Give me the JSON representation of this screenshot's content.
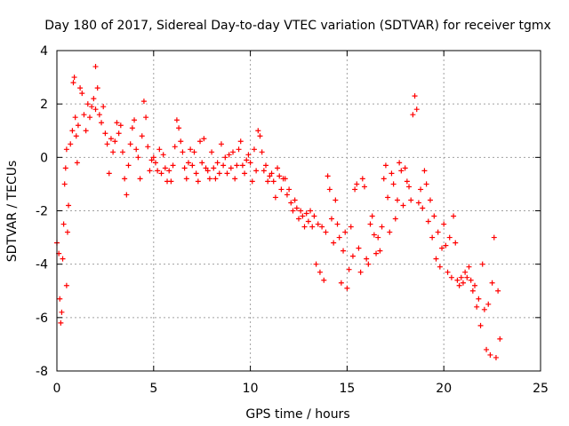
{
  "chart_data": {
    "type": "scatter",
    "title": "Day 180 of 2017, Sidereal Day-to-day VTEC variation (SDTVAR) for receiver tgmx",
    "xlabel": "GPS time / hours",
    "ylabel": "SDTVAR / TECUs",
    "xlim": [
      0,
      25
    ],
    "ylim": [
      -8,
      4
    ],
    "xticks": [
      0,
      5,
      10,
      15,
      20,
      25
    ],
    "yticks": [
      -8,
      -6,
      -4,
      -2,
      0,
      2,
      4
    ],
    "xtick_labels": [
      "0",
      "5",
      "10",
      "15",
      "20",
      "25"
    ],
    "ytick_labels": [
      "-8",
      "-6",
      "-4",
      "-2",
      "0",
      "2",
      "4"
    ],
    "grid": true,
    "marker": "+",
    "series": [
      {
        "name": "SDTVAR",
        "color": "#ff0000",
        "points": [
          [
            0.0,
            -3.2
          ],
          [
            0.1,
            -3.6
          ],
          [
            0.15,
            -5.3
          ],
          [
            0.2,
            -6.2
          ],
          [
            0.25,
            -5.8
          ],
          [
            0.3,
            -3.8
          ],
          [
            0.35,
            -2.5
          ],
          [
            0.4,
            -1.0
          ],
          [
            0.45,
            -0.4
          ],
          [
            0.5,
            0.3
          ],
          [
            0.5,
            -4.8
          ],
          [
            0.55,
            -2.8
          ],
          [
            0.6,
            -1.8
          ],
          [
            0.7,
            0.5
          ],
          [
            0.8,
            1.0
          ],
          [
            0.85,
            2.8
          ],
          [
            0.9,
            3.0
          ],
          [
            0.95,
            1.5
          ],
          [
            1.0,
            0.8
          ],
          [
            1.05,
            -0.2
          ],
          [
            1.1,
            1.2
          ],
          [
            1.2,
            2.6
          ],
          [
            1.3,
            2.4
          ],
          [
            1.4,
            1.6
          ],
          [
            1.5,
            1.0
          ],
          [
            1.6,
            2.0
          ],
          [
            1.7,
            1.5
          ],
          [
            1.8,
            1.9
          ],
          [
            1.9,
            2.2
          ],
          [
            2.0,
            1.8
          ],
          [
            2.0,
            3.4
          ],
          [
            2.1,
            2.6
          ],
          [
            2.2,
            1.6
          ],
          [
            2.3,
            1.3
          ],
          [
            2.4,
            1.9
          ],
          [
            2.5,
            0.9
          ],
          [
            2.6,
            0.5
          ],
          [
            2.7,
            -0.6
          ],
          [
            2.8,
            0.7
          ],
          [
            2.9,
            0.2
          ],
          [
            3.0,
            0.6
          ],
          [
            3.1,
            1.3
          ],
          [
            3.2,
            0.9
          ],
          [
            3.3,
            1.2
          ],
          [
            3.4,
            0.2
          ],
          [
            3.5,
            -0.8
          ],
          [
            3.6,
            -1.4
          ],
          [
            3.7,
            -0.3
          ],
          [
            3.8,
            0.5
          ],
          [
            3.9,
            1.1
          ],
          [
            4.0,
            1.4
          ],
          [
            4.1,
            0.3
          ],
          [
            4.2,
            0.0
          ],
          [
            4.3,
            -0.8
          ],
          [
            4.4,
            0.8
          ],
          [
            4.5,
            2.1
          ],
          [
            4.6,
            1.5
          ],
          [
            4.7,
            0.4
          ],
          [
            4.8,
            -0.5
          ],
          [
            4.9,
            -0.1
          ],
          [
            5.0,
            0.0
          ],
          [
            5.1,
            -0.2
          ],
          [
            5.2,
            -0.5
          ],
          [
            5.3,
            0.3
          ],
          [
            5.4,
            -0.6
          ],
          [
            5.5,
            0.1
          ],
          [
            5.6,
            -0.4
          ],
          [
            5.7,
            -0.9
          ],
          [
            5.8,
            -0.5
          ],
          [
            5.9,
            -0.9
          ],
          [
            6.0,
            -0.3
          ],
          [
            6.1,
            0.4
          ],
          [
            6.2,
            1.4
          ],
          [
            6.3,
            1.1
          ],
          [
            6.4,
            0.6
          ],
          [
            6.5,
            0.2
          ],
          [
            6.6,
            -0.4
          ],
          [
            6.7,
            -0.8
          ],
          [
            6.8,
            -0.2
          ],
          [
            6.9,
            0.3
          ],
          [
            7.0,
            -0.3
          ],
          [
            7.1,
            0.2
          ],
          [
            7.2,
            -0.6
          ],
          [
            7.3,
            -0.9
          ],
          [
            7.4,
            0.6
          ],
          [
            7.5,
            -0.2
          ],
          [
            7.6,
            0.7
          ],
          [
            7.7,
            -0.4
          ],
          [
            7.8,
            -0.5
          ],
          [
            7.9,
            -0.8
          ],
          [
            8.0,
            0.2
          ],
          [
            8.1,
            -0.4
          ],
          [
            8.2,
            -0.8
          ],
          [
            8.3,
            -0.2
          ],
          [
            8.4,
            -0.6
          ],
          [
            8.5,
            0.5
          ],
          [
            8.6,
            -0.3
          ],
          [
            8.7,
            0.0
          ],
          [
            8.8,
            -0.6
          ],
          [
            8.9,
            0.1
          ],
          [
            9.0,
            -0.4
          ],
          [
            9.1,
            0.2
          ],
          [
            9.2,
            -0.8
          ],
          [
            9.3,
            -0.3
          ],
          [
            9.4,
            0.3
          ],
          [
            9.5,
            0.6
          ],
          [
            9.6,
            -0.3
          ],
          [
            9.7,
            -0.6
          ],
          [
            9.8,
            -0.1
          ],
          [
            9.9,
            0.1
          ],
          [
            10.0,
            -0.2
          ],
          [
            10.1,
            -0.9
          ],
          [
            10.2,
            0.3
          ],
          [
            10.3,
            -0.5
          ],
          [
            10.4,
            1.0
          ],
          [
            10.5,
            0.8
          ],
          [
            10.6,
            0.2
          ],
          [
            10.7,
            -0.5
          ],
          [
            10.8,
            -0.3
          ],
          [
            10.9,
            -0.9
          ],
          [
            11.0,
            -0.7
          ],
          [
            11.1,
            -0.6
          ],
          [
            11.2,
            -0.9
          ],
          [
            11.3,
            -1.5
          ],
          [
            11.4,
            -0.4
          ],
          [
            11.5,
            -0.7
          ],
          [
            11.6,
            -1.2
          ],
          [
            11.7,
            -0.8
          ],
          [
            11.8,
            -0.8
          ],
          [
            11.9,
            -1.4
          ],
          [
            12.0,
            -1.2
          ],
          [
            12.1,
            -1.7
          ],
          [
            12.2,
            -2.0
          ],
          [
            12.3,
            -1.6
          ],
          [
            12.4,
            -1.9
          ],
          [
            12.5,
            -2.3
          ],
          [
            12.6,
            -2.0
          ],
          [
            12.7,
            -2.2
          ],
          [
            12.8,
            -2.6
          ],
          [
            12.9,
            -2.1
          ],
          [
            13.0,
            -2.4
          ],
          [
            13.1,
            -2.0
          ],
          [
            13.2,
            -2.6
          ],
          [
            13.3,
            -2.2
          ],
          [
            13.4,
            -4.0
          ],
          [
            13.5,
            -2.5
          ],
          [
            13.6,
            -4.3
          ],
          [
            13.7,
            -2.6
          ],
          [
            13.8,
            -4.6
          ],
          [
            13.9,
            -2.8
          ],
          [
            14.0,
            -0.7
          ],
          [
            14.1,
            -1.2
          ],
          [
            14.2,
            -2.3
          ],
          [
            14.3,
            -3.2
          ],
          [
            14.4,
            -1.6
          ],
          [
            14.5,
            -2.5
          ],
          [
            14.6,
            -3.0
          ],
          [
            14.7,
            -4.7
          ],
          [
            14.8,
            -3.5
          ],
          [
            14.9,
            -2.8
          ],
          [
            15.0,
            -4.9
          ],
          [
            15.1,
            -4.2
          ],
          [
            15.2,
            -2.6
          ],
          [
            15.3,
            -3.7
          ],
          [
            15.4,
            -1.2
          ],
          [
            15.5,
            -1.0
          ],
          [
            15.6,
            -3.4
          ],
          [
            15.7,
            -4.3
          ],
          [
            15.8,
            -0.8
          ],
          [
            15.9,
            -1.1
          ],
          [
            16.0,
            -3.8
          ],
          [
            16.1,
            -4.0
          ],
          [
            16.2,
            -2.5
          ],
          [
            16.3,
            -2.2
          ],
          [
            16.4,
            -2.9
          ],
          [
            16.5,
            -3.6
          ],
          [
            16.6,
            -3.0
          ],
          [
            16.7,
            -3.5
          ],
          [
            16.8,
            -2.6
          ],
          [
            16.9,
            -0.8
          ],
          [
            17.0,
            -0.3
          ],
          [
            17.1,
            -1.5
          ],
          [
            17.2,
            -2.8
          ],
          [
            17.3,
            -0.6
          ],
          [
            17.4,
            -1.0
          ],
          [
            17.5,
            -2.3
          ],
          [
            17.6,
            -1.6
          ],
          [
            17.7,
            -0.2
          ],
          [
            17.8,
            -0.5
          ],
          [
            17.9,
            -1.8
          ],
          [
            18.0,
            -0.4
          ],
          [
            18.1,
            -0.9
          ],
          [
            18.2,
            -1.1
          ],
          [
            18.3,
            -1.6
          ],
          [
            18.4,
            1.6
          ],
          [
            18.5,
            2.3
          ],
          [
            18.6,
            1.8
          ],
          [
            18.7,
            -1.7
          ],
          [
            18.8,
            -1.2
          ],
          [
            18.9,
            -1.9
          ],
          [
            19.0,
            -0.5
          ],
          [
            19.1,
            -1.0
          ],
          [
            19.2,
            -2.4
          ],
          [
            19.3,
            -1.6
          ],
          [
            19.4,
            -3.0
          ],
          [
            19.5,
            -2.2
          ],
          [
            19.6,
            -3.8
          ],
          [
            19.7,
            -2.8
          ],
          [
            19.8,
            -4.1
          ],
          [
            19.9,
            -3.4
          ],
          [
            20.0,
            -2.5
          ],
          [
            20.1,
            -3.3
          ],
          [
            20.2,
            -4.3
          ],
          [
            20.3,
            -3.0
          ],
          [
            20.4,
            -4.5
          ],
          [
            20.5,
            -2.2
          ],
          [
            20.6,
            -3.2
          ],
          [
            20.7,
            -4.6
          ],
          [
            20.8,
            -4.8
          ],
          [
            20.9,
            -4.5
          ],
          [
            21.0,
            -4.7
          ],
          [
            21.1,
            -4.3
          ],
          [
            21.2,
            -4.5
          ],
          [
            21.3,
            -4.1
          ],
          [
            21.4,
            -4.6
          ],
          [
            21.5,
            -5.0
          ],
          [
            21.6,
            -4.8
          ],
          [
            21.7,
            -5.6
          ],
          [
            21.8,
            -5.3
          ],
          [
            21.9,
            -6.3
          ],
          [
            22.0,
            -4.0
          ],
          [
            22.1,
            -5.7
          ],
          [
            22.2,
            -7.2
          ],
          [
            22.3,
            -5.5
          ],
          [
            22.4,
            -7.4
          ],
          [
            22.5,
            -4.7
          ],
          [
            22.6,
            -3.0
          ],
          [
            22.7,
            -7.5
          ],
          [
            22.8,
            -5.0
          ],
          [
            22.9,
            -6.8
          ]
        ]
      }
    ]
  }
}
